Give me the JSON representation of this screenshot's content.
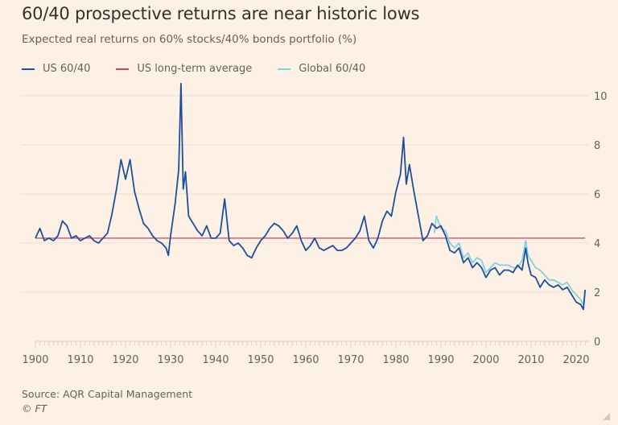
{
  "chart_data": {
    "type": "line",
    "title": "60/40 prospective returns are near historic lows",
    "subtitle": "Expected real returns on 60% stocks/40% bonds portfolio (%)",
    "xlabel": "",
    "ylabel": "",
    "xlim": [
      1900,
      2022
    ],
    "ylim": [
      0,
      10
    ],
    "x_ticks": [
      "1900",
      "1910",
      "1920",
      "1930",
      "1940",
      "1950",
      "1960",
      "1970",
      "1980",
      "1990",
      "2000",
      "2010",
      "2020"
    ],
    "y_ticks": [
      "0",
      "2",
      "4",
      "6",
      "8",
      "10"
    ],
    "grid": true,
    "legend_position": "top-left",
    "series": [
      {
        "name": "US 60/40",
        "color": "#1f4f9a",
        "x": [
          1900,
          1901,
          1902,
          1903,
          1904,
          1905,
          1906,
          1907,
          1908,
          1909,
          1910,
          1911,
          1912,
          1913,
          1914,
          1915,
          1916,
          1917,
          1918,
          1919,
          1920,
          1921,
          1922,
          1923,
          1924,
          1925,
          1926,
          1927,
          1928,
          1929,
          1929.5,
          1930,
          1931,
          1931.8,
          1932.3,
          1932.8,
          1933.3,
          1934,
          1935,
          1936,
          1937,
          1938,
          1939,
          1940,
          1941,
          1942,
          1943,
          1944,
          1945,
          1946,
          1947,
          1948,
          1949,
          1950,
          1951,
          1952,
          1953,
          1954,
          1955,
          1956,
          1957,
          1958,
          1959,
          1960,
          1961,
          1962,
          1963,
          1964,
          1965,
          1966,
          1967,
          1968,
          1969,
          1970,
          1971,
          1972,
          1973,
          1974,
          1975,
          1976,
          1977,
          1978,
          1979,
          1980,
          1981,
          1981.7,
          1982.3,
          1983,
          1984,
          1985,
          1986,
          1987,
          1988,
          1989,
          1990,
          1991,
          1992,
          1993,
          1994,
          1995,
          1996,
          1997,
          1998,
          1999,
          2000,
          2001,
          2002,
          2003,
          2004,
          2005,
          2006,
          2007,
          2008,
          2008.8,
          2009.3,
          2010,
          2011,
          2012,
          2013,
          2014,
          2015,
          2016,
          2017,
          2018,
          2019,
          2020,
          2021,
          2021.6,
          2022
        ],
        "values": [
          4.2,
          4.6,
          4.1,
          4.2,
          4.1,
          4.3,
          4.9,
          4.7,
          4.2,
          4.3,
          4.1,
          4.2,
          4.3,
          4.1,
          4.0,
          4.2,
          4.4,
          5.2,
          6.2,
          7.4,
          6.6,
          7.4,
          6.1,
          5.4,
          4.8,
          4.6,
          4.3,
          4.1,
          4.0,
          3.8,
          3.5,
          4.3,
          5.6,
          7.0,
          10.5,
          6.2,
          6.9,
          5.1,
          4.8,
          4.5,
          4.3,
          4.7,
          4.2,
          4.2,
          4.4,
          5.8,
          4.1,
          3.9,
          4.0,
          3.8,
          3.5,
          3.4,
          3.8,
          4.1,
          4.3,
          4.6,
          4.8,
          4.7,
          4.5,
          4.2,
          4.4,
          4.7,
          4.1,
          3.7,
          3.9,
          4.2,
          3.8,
          3.7,
          3.8,
          3.9,
          3.7,
          3.7,
          3.8,
          4.0,
          4.2,
          4.5,
          5.1,
          4.1,
          3.8,
          4.2,
          4.9,
          5.3,
          5.1,
          6.1,
          6.8,
          8.3,
          6.4,
          7.2,
          6.1,
          5.1,
          4.1,
          4.3,
          4.8,
          4.6,
          4.7,
          4.3,
          3.7,
          3.6,
          3.8,
          3.2,
          3.4,
          3.0,
          3.2,
          3.0,
          2.6,
          2.9,
          3.0,
          2.7,
          2.9,
          2.9,
          2.8,
          3.1,
          2.9,
          3.8,
          3.2,
          2.7,
          2.6,
          2.2,
          2.5,
          2.3,
          2.2,
          2.3,
          2.1,
          2.2,
          1.9,
          1.6,
          1.5,
          1.3,
          2.1
        ]
      },
      {
        "name": "US long-term average",
        "color": "#d23f67",
        "x": [
          1900,
          2022
        ],
        "values": [
          4.2,
          4.2
        ]
      },
      {
        "name": "Global 60/40",
        "color": "#7fd3dc",
        "x": [
          1988.5,
          1989,
          1990,
          1991,
          1992,
          1993,
          1994,
          1995,
          1996,
          1997,
          1998,
          1999,
          2000,
          2001,
          2002,
          2003,
          2004,
          2005,
          2006,
          2007,
          2008,
          2008.8,
          2009.3,
          2010,
          2011,
          2012,
          2013,
          2014,
          2015,
          2016,
          2017,
          2018,
          2019,
          2020,
          2021,
          2021.6,
          2022
        ],
        "values": [
          4.4,
          5.1,
          4.6,
          4.5,
          4.0,
          3.8,
          4.0,
          3.4,
          3.6,
          3.2,
          3.4,
          3.3,
          2.8,
          3.0,
          3.2,
          3.1,
          3.1,
          3.1,
          3.0,
          3.0,
          3.3,
          4.1,
          3.5,
          3.3,
          3.0,
          2.9,
          2.7,
          2.5,
          2.5,
          2.4,
          2.3,
          2.4,
          2.1,
          1.9,
          1.7,
          1.5,
          2.1
        ]
      }
    ]
  },
  "legend": {
    "items": [
      {
        "label": "US 60/40",
        "color": "#1f4f9a"
      },
      {
        "label": "US long-term average",
        "color": "#d23f67"
      },
      {
        "label": "Global 60/40",
        "color": "#7fd3dc"
      }
    ]
  },
  "footer": {
    "source": "Source: AQR Capital Management",
    "copyright": "© FT"
  }
}
